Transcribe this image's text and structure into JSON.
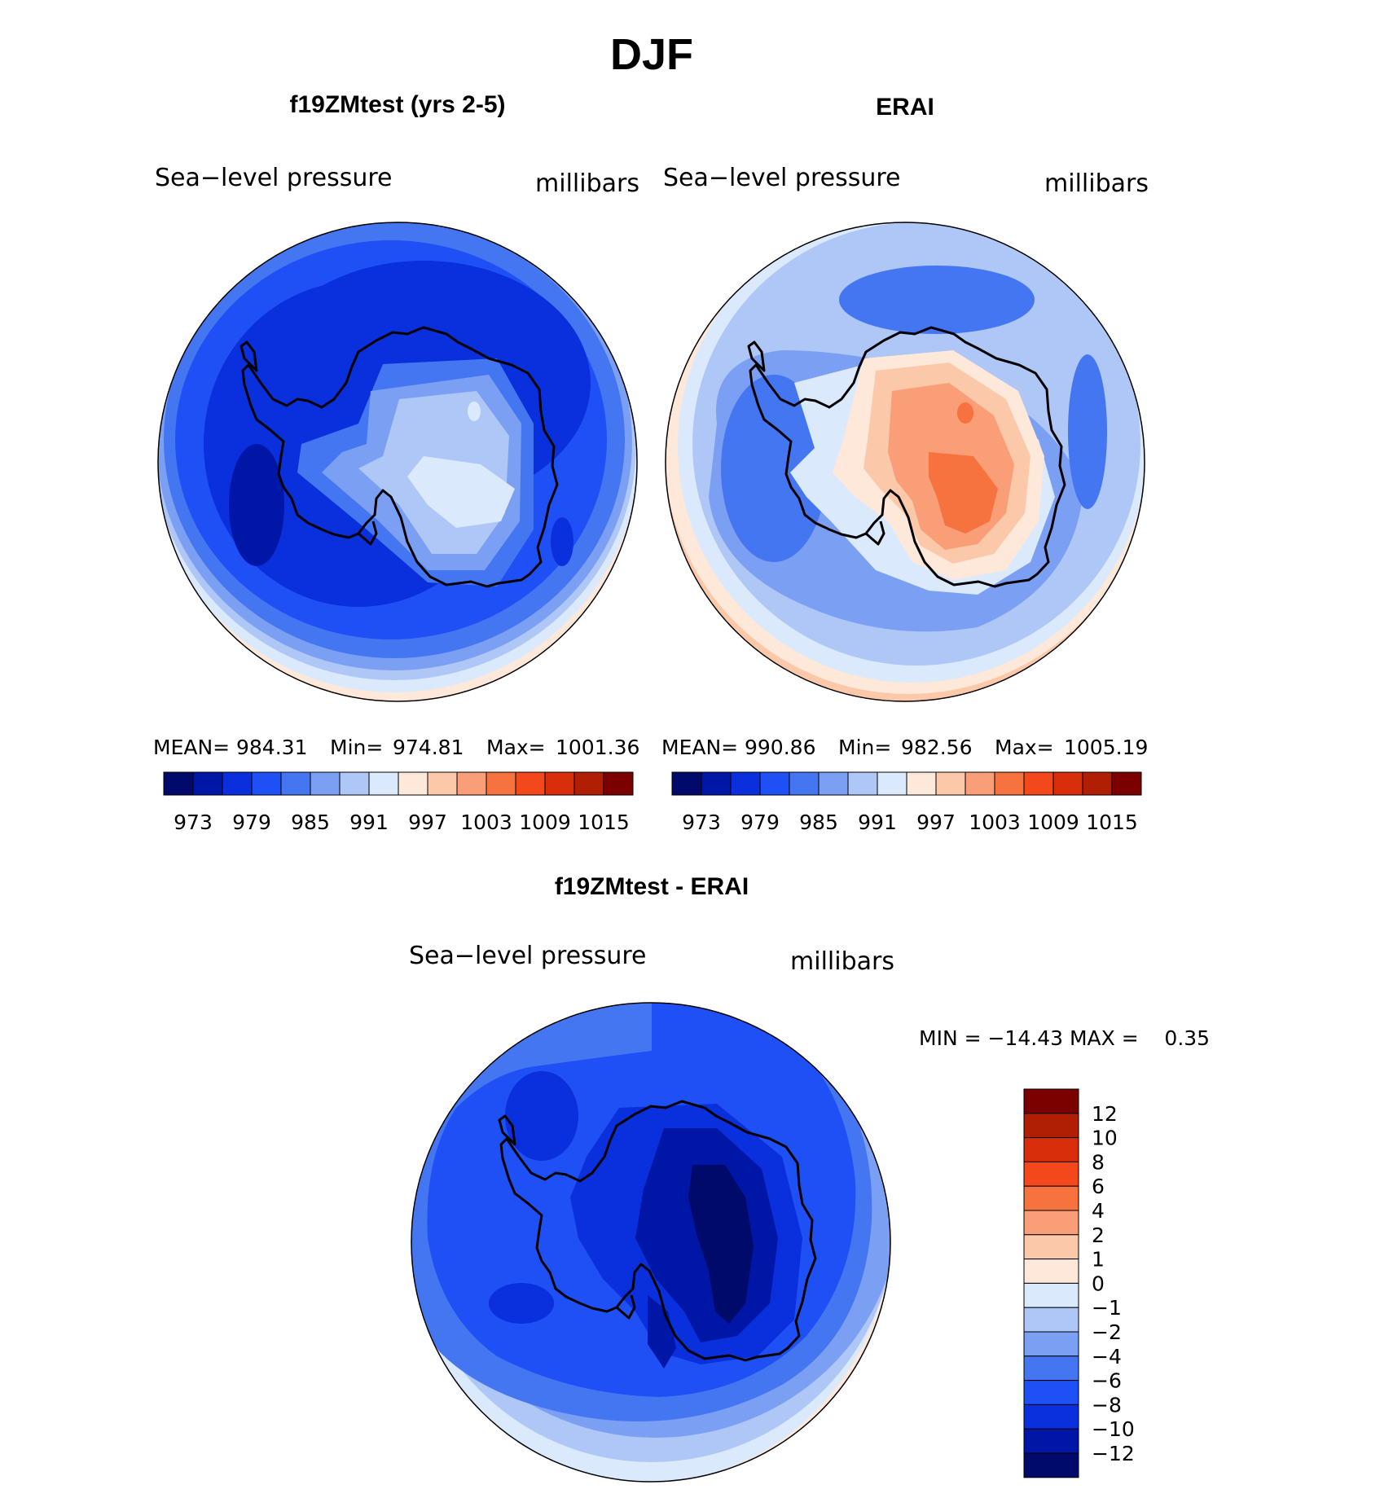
{
  "figure": {
    "title": "DJF",
    "panels": [
      {
        "id": "model",
        "title": "f19ZMtest (yrs 2-5)",
        "variable": "Sea−level pressure",
        "units": "millibars",
        "stats": {
          "mean_label": "MEAN=",
          "mean": "984.31",
          "min_label": "Min=",
          "min": "974.81",
          "max_label": "Max=",
          "max": "1001.36"
        }
      },
      {
        "id": "obs",
        "title": "ERAI",
        "variable": "Sea−level pressure",
        "units": "millibars",
        "stats": {
          "mean_label": "MEAN=",
          "mean": "990.86",
          "min_label": "Min=",
          "min": "982.56",
          "max_label": "Max=",
          "max": "1005.19"
        }
      },
      {
        "id": "diff",
        "title": "f19ZMtest - ERAI",
        "variable": "Sea−level pressure",
        "units": "millibars",
        "stats_text": "MIN = −14.43 MAX =    0.35"
      }
    ],
    "abs_colorbar": {
      "labels": [
        "973",
        "979",
        "985",
        "991",
        "997",
        "1003",
        "1009",
        "1015"
      ],
      "colors": [
        "#000a6b",
        "#0016a6",
        "#0a2fdc",
        "#1f50f5",
        "#4476f2",
        "#7b9ff2",
        "#aec7f7",
        "#dbe9fc",
        "#fde8d9",
        "#fbc8aa",
        "#f99e76",
        "#f6723e",
        "#f2481c",
        "#d92e0b",
        "#b01e03",
        "#7b0000"
      ]
    },
    "diff_colorbar": {
      "labels": [
        "12",
        "10",
        "8",
        "6",
        "4",
        "2",
        "1",
        "0",
        "−1",
        "−2",
        "−4",
        "−6",
        "−8",
        "−10",
        "−12"
      ],
      "colors": [
        "#7b0000",
        "#b01e03",
        "#d92e0b",
        "#f2481c",
        "#f6723e",
        "#f99e76",
        "#fbc8aa",
        "#fde8d9",
        "#dbe9fc",
        "#aec7f7",
        "#7b9ff2",
        "#4476f2",
        "#1f50f5",
        "#0a2fdc",
        "#0016a6",
        "#000a6b"
      ]
    }
  },
  "chart_data": {
    "type": "heatmap",
    "title": "DJF",
    "projection": "south-polar-stereographic",
    "variable": "Sea-level pressure",
    "units": "millibars",
    "panels": [
      {
        "name": "f19ZMtest (yrs 2-5)",
        "mean": 984.31,
        "min": 974.81,
        "max": 1001.36,
        "contour_levels": [
          973,
          976,
          979,
          982,
          985,
          988,
          991,
          994,
          997,
          1000,
          1003,
          1006,
          1009,
          1012,
          1015
        ]
      },
      {
        "name": "ERAI",
        "mean": 990.86,
        "min": 982.56,
        "max": 1005.19,
        "contour_levels": [
          973,
          976,
          979,
          982,
          985,
          988,
          991,
          994,
          997,
          1000,
          1003,
          1006,
          1009,
          1012,
          1015
        ]
      },
      {
        "name": "f19ZMtest - ERAI",
        "min": -14.43,
        "max": 0.35,
        "contour_levels": [
          -12,
          -10,
          -8,
          -6,
          -4,
          -2,
          -1,
          0,
          1,
          2,
          4,
          6,
          8,
          10,
          12
        ]
      }
    ]
  }
}
